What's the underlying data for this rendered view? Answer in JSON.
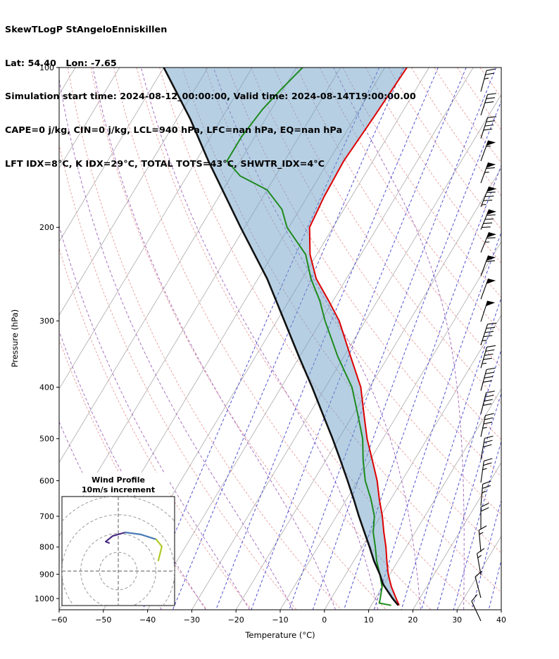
{
  "header": {
    "title": "SkewTLogP StAngeloEnniskillen",
    "location": "Lat: 54.40   Lon: -7.65",
    "times": "Simulation start time: 2024-08-12_00:00:00, Valid time: 2024-08-14T19:00:00.00",
    "indices1": "CAPE=0 j/kg, CIN=0 j/kg, LCL=940 hPa, LFC=nan hPa, EQ=nan hPa",
    "indices2": "LFT IDX=8°C, K IDX=29°C, TOTAL TOTS=43°C, SHWTR_IDX=4°C"
  },
  "chart_data": {
    "type": "skewt-logp",
    "xlabel": "Temperature (°C)",
    "ylabel": "Pressure (hPa)",
    "x_ticks": [
      -60,
      -50,
      -40,
      -30,
      -20,
      -10,
      0,
      10,
      20,
      30,
      40
    ],
    "x_tick_labels": [
      "−60",
      "−50",
      "−40",
      "−30",
      "−20",
      "−10",
      "0",
      "10",
      "20",
      "30",
      "40"
    ],
    "p_ticks": [
      100,
      200,
      300,
      400,
      500,
      600,
      700,
      800,
      900,
      1000
    ],
    "p_tick_labels": [
      "100",
      "200",
      "300",
      "400",
      "500",
      "600",
      "700",
      "800",
      "900",
      "1000"
    ],
    "p_range": [
      100,
      1050
    ],
    "t_range": [
      -60,
      40
    ],
    "skew": 0.6,
    "isotherms_c": [
      -140,
      -130,
      -120,
      -110,
      -100,
      -90,
      -80,
      -70,
      -60,
      -50,
      -40,
      -30,
      -20,
      -10,
      0,
      10,
      20,
      30,
      40
    ],
    "dry_adiabats_theta_c": [
      -30,
      -20,
      -10,
      0,
      10,
      20,
      30,
      40,
      50,
      60,
      70,
      80,
      90,
      100,
      110,
      120,
      130,
      140,
      150,
      160,
      170,
      180,
      190,
      200
    ],
    "moist_adiabats_t1000_c": [
      -40,
      -30,
      -20,
      -10,
      0,
      10,
      20,
      30
    ],
    "mixing_ratios_g_kg": [
      0.1,
      0.2,
      0.5,
      1,
      2,
      3,
      5,
      8,
      12,
      16,
      20,
      25,
      32,
      40
    ],
    "temperature_profile": [
      [
        1030,
        16.3
      ],
      [
        1000,
        14.7
      ],
      [
        950,
        12.0
      ],
      [
        900,
        9.6
      ],
      [
        850,
        7.5
      ],
      [
        800,
        5.4
      ],
      [
        750,
        2.9
      ],
      [
        700,
        0.4
      ],
      [
        650,
        -2.6
      ],
      [
        600,
        -5.6
      ],
      [
        550,
        -9.4
      ],
      [
        500,
        -13.6
      ],
      [
        450,
        -17.6
      ],
      [
        400,
        -22.0
      ],
      [
        350,
        -28.5
      ],
      [
        300,
        -35.9
      ],
      [
        275,
        -41.0
      ],
      [
        250,
        -46.8
      ],
      [
        225,
        -51.5
      ],
      [
        200,
        -55.3
      ],
      [
        175,
        -56.2
      ],
      [
        150,
        -56.6
      ],
      [
        125,
        -55.8
      ],
      [
        100,
        -55.0
      ]
    ],
    "dewpoint_profile": [
      [
        1030,
        14.5
      ],
      [
        1020,
        11.5
      ],
      [
        1000,
        11.1
      ],
      [
        950,
        9.9
      ],
      [
        900,
        7.7
      ],
      [
        850,
        5.2
      ],
      [
        800,
        3.0
      ],
      [
        750,
        0.5
      ],
      [
        700,
        -1.4
      ],
      [
        650,
        -4.5
      ],
      [
        600,
        -8.3
      ],
      [
        550,
        -11.5
      ],
      [
        500,
        -14.6
      ],
      [
        450,
        -19.0
      ],
      [
        400,
        -24.0
      ],
      [
        350,
        -31.4
      ],
      [
        300,
        -39.1
      ],
      [
        275,
        -43.0
      ],
      [
        250,
        -48.0
      ],
      [
        225,
        -52.5
      ],
      [
        200,
        -60.4
      ],
      [
        185,
        -64.0
      ],
      [
        170,
        -70.0
      ],
      [
        160,
        -78.0
      ],
      [
        150,
        -83.0
      ],
      [
        135,
        -83.0
      ],
      [
        120,
        -82.0
      ],
      [
        110,
        -80.5
      ],
      [
        100,
        -78.6
      ]
    ],
    "parcel_profile": [
      [
        1030,
        16.1
      ],
      [
        1000,
        13.9
      ],
      [
        940,
        9.8
      ],
      [
        900,
        7.7
      ],
      [
        850,
        4.6
      ],
      [
        800,
        1.7
      ],
      [
        750,
        -1.5
      ],
      [
        700,
        -4.9
      ],
      [
        650,
        -8.4
      ],
      [
        600,
        -12.3
      ],
      [
        550,
        -16.6
      ],
      [
        500,
        -21.4
      ],
      [
        450,
        -26.9
      ],
      [
        400,
        -33.0
      ],
      [
        350,
        -40.2
      ],
      [
        300,
        -48.3
      ],
      [
        250,
        -57.9
      ],
      [
        200,
        -70.9
      ],
      [
        150,
        -87.2
      ],
      [
        125,
        -97.0
      ],
      [
        100,
        -110.0
      ]
    ],
    "wind_barbs": [
      [
        1102,
        335,
        4
      ],
      [
        997,
        345,
        5
      ],
      [
        903,
        350,
        7
      ],
      [
        817,
        355,
        8
      ],
      [
        739,
        0,
        10
      ],
      [
        669,
        5,
        12
      ],
      [
        605,
        8,
        13
      ],
      [
        548,
        10,
        15
      ],
      [
        496,
        12,
        17
      ],
      [
        449,
        14,
        19
      ],
      [
        406,
        15,
        21
      ],
      [
        368,
        16,
        22
      ],
      [
        333,
        18,
        23
      ],
      [
        301,
        18,
        24
      ],
      [
        273,
        20,
        26
      ],
      [
        247,
        20,
        29
      ],
      [
        223,
        22,
        33
      ],
      [
        202,
        22,
        45
      ],
      [
        183,
        22,
        42
      ],
      [
        165,
        20,
        33
      ],
      [
        150,
        20,
        27
      ],
      [
        136,
        18,
        21
      ],
      [
        123,
        18,
        16
      ],
      [
        111,
        15,
        13
      ]
    ],
    "hodograph": {
      "title": "Wind Profile",
      "subtitle": "10m/s increment",
      "ring_increment_ms": 10,
      "segments": [
        {
          "color": "#4b2d83",
          "points": [
            [
              3.7,
              20.6
            ],
            [
              -3.0,
              18.7
            ],
            [
              -6.7,
              15.7
            ],
            [
              -4.9,
              15.0
            ]
          ]
        },
        {
          "color": "#4a7ab5",
          "points": [
            [
              20.2,
              16.9
            ],
            [
              12.0,
              19.5
            ],
            [
              3.7,
              20.6
            ]
          ]
        },
        {
          "color": "#b0c926",
          "points": [
            [
              21.3,
              5.6
            ],
            [
              23.2,
              13.1
            ],
            [
              20.2,
              16.9
            ]
          ]
        }
      ]
    },
    "colors": {
      "temperature": "#dd0000",
      "dewpoint": "#1e8b1e",
      "parcel": "#111111",
      "shading": "rgba(110,160,200,0.5)",
      "isotherm": "#ababab",
      "dry_adiabat": "#e59090",
      "moist_adiabat": "#9f63b8",
      "mixing_ratio": "#4040cc",
      "barb": "#000000",
      "hodo_grid": "#999999"
    }
  }
}
